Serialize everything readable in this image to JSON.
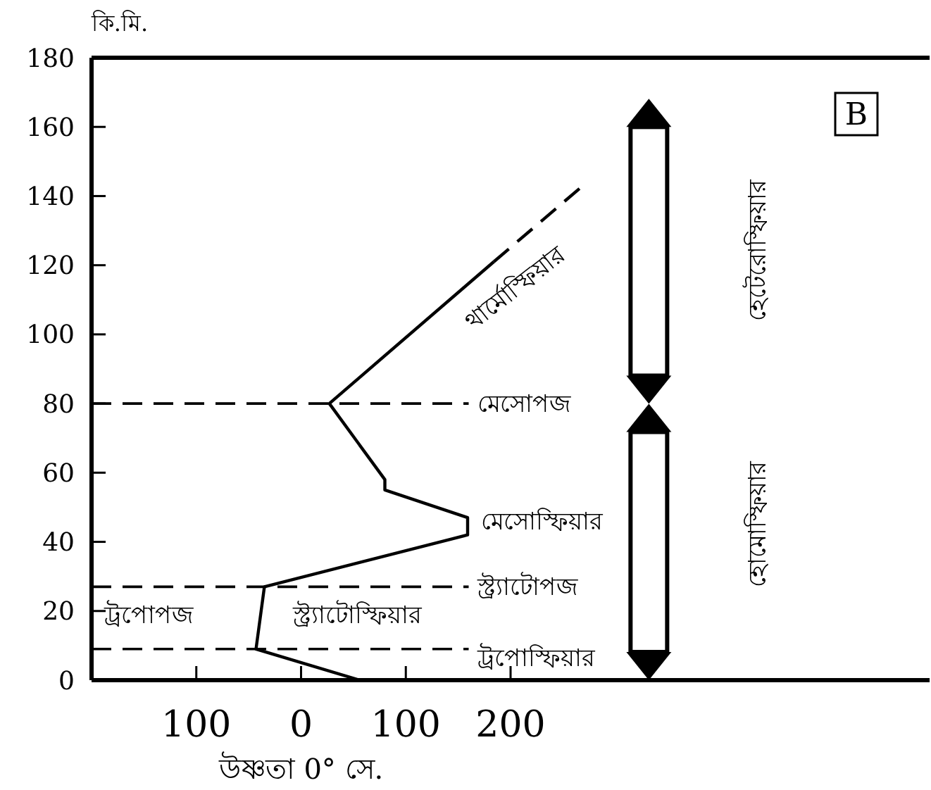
{
  "chart_data": {
    "type": "line",
    "ylabel": "কি.মি.",
    "xlabel": "উষ্ণতা 0° সে.",
    "xlim": [
      -200,
      600
    ],
    "xticks": [
      {
        "value": -100,
        "label": "100"
      },
      0,
      100,
      200
    ],
    "ylim": [
      0,
      180
    ],
    "yticks": [
      0,
      20,
      40,
      60,
      80,
      100,
      120,
      140,
      160,
      180
    ],
    "series": [
      {
        "color": "#000000",
        "x": [
          56,
          -43,
          -35,
          159,
          159,
          80,
          80,
          27,
          184
        ],
        "values": [
          0,
          9,
          27,
          42,
          47,
          55,
          58,
          80,
          121
        ],
        "line_style": "solid"
      },
      {
        "color": "#000000",
        "x": [
          184,
          269
        ],
        "values": [
          121,
          143
        ],
        "line_style": "dashed"
      }
    ],
    "ref_lines": [
      {
        "axis": "y",
        "value": 80,
        "label": "মেসোপজ"
      },
      {
        "axis": "y",
        "value": 27,
        "label": "স্ট্র্যাটোপজ"
      },
      {
        "axis": "y",
        "value": 9,
        "label": "ট্রপোস্ফিয়ার"
      }
    ],
    "annotations": [
      "থার্মোস্ফিয়ার",
      "মেসোস্ফিয়ার",
      "স্ট্র্যাটোস্ফিয়ার",
      "ট্রপোপজ",
      "হেটেরোস্ফিয়ার",
      "হোমোস্ফিয়ার",
      "B"
    ],
    "grid": false
  }
}
